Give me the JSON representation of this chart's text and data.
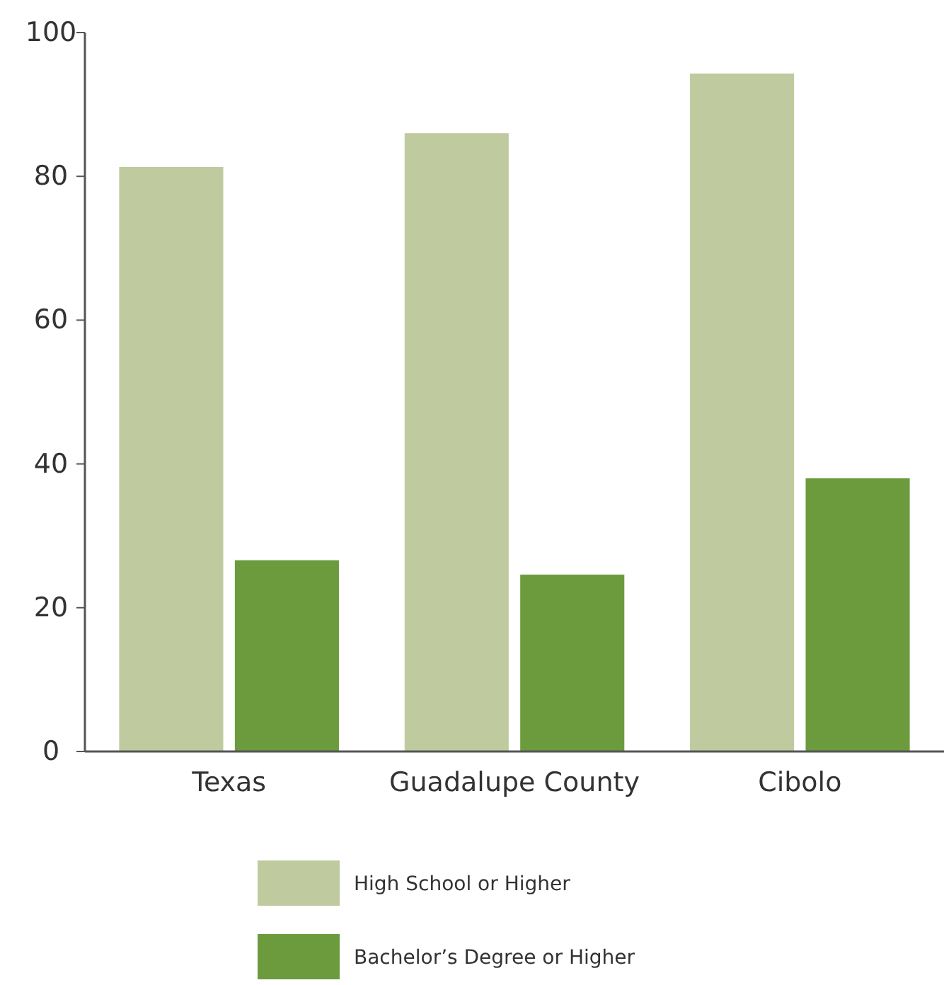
{
  "chart_data": {
    "type": "bar",
    "categories": [
      "Texas",
      "Guadalupe County",
      "Cibolo"
    ],
    "series": [
      {
        "name": "High School or Higher",
        "color": "#bfcb9f",
        "values": [
          81.3,
          86,
          94.3
        ]
      },
      {
        "name": "Bachelor’s Degree or Higher",
        "color": "#6c9b3e",
        "values": [
          26.6,
          24.6,
          38
        ]
      }
    ],
    "ylim": [
      0,
      100
    ],
    "yticks": [
      0,
      20,
      40,
      60,
      80,
      100
    ],
    "grid": false,
    "legend": "bottom"
  }
}
